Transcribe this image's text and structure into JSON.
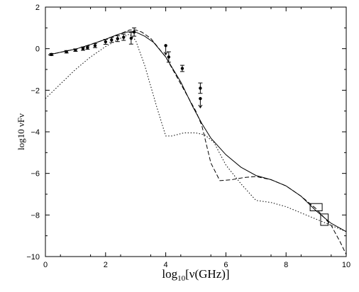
{
  "chart_data": {
    "type": "line",
    "title": "",
    "xlabel": "log10[ν(GHz)]",
    "xlabel_parts": {
      "prefix": "log",
      "subscript": "10",
      "suffix": "[ν(GHz)]"
    },
    "ylabel": "log10 νFν",
    "xlim": [
      0,
      10
    ],
    "ylim": [
      -10,
      2
    ],
    "xticks": [
      0,
      2,
      4,
      6,
      8,
      10
    ],
    "yticks": [
      -10,
      -8,
      -6,
      -4,
      -2,
      0,
      2
    ],
    "grid": false,
    "legend": "none",
    "series": [
      {
        "style": "solid",
        "x": [
          0.1,
          0.5,
          1.0,
          1.5,
          2.0,
          2.4,
          2.7,
          2.9,
          3.0,
          3.3,
          3.6,
          4.0,
          4.5,
          4.9,
          5.2,
          5.5,
          6.0,
          6.5,
          7.0,
          7.5,
          8.0,
          8.5,
          9.0,
          9.5,
          10.0
        ],
        "y": [
          -0.3,
          -0.17,
          -0.02,
          0.2,
          0.45,
          0.68,
          0.8,
          0.82,
          0.8,
          0.6,
          0.3,
          -0.4,
          -1.6,
          -2.8,
          -3.6,
          -4.3,
          -5.1,
          -5.7,
          -6.1,
          -6.3,
          -6.6,
          -7.1,
          -7.8,
          -8.4,
          -8.8
        ]
      },
      {
        "style": "dashed",
        "x": [
          0.1,
          0.5,
          1.0,
          1.5,
          2.0,
          2.5,
          2.8,
          3.0,
          3.2,
          3.5,
          4.0,
          4.5,
          5.0,
          5.2,
          5.5,
          5.8,
          6.2,
          6.6,
          7.0,
          7.5,
          8.0,
          8.5,
          9.0,
          9.5,
          9.8,
          10.0
        ],
        "y": [
          -0.3,
          -0.17,
          -0.02,
          0.2,
          0.45,
          0.72,
          0.9,
          0.9,
          0.8,
          0.5,
          -0.4,
          -1.7,
          -3.0,
          -3.7,
          -5.5,
          -6.35,
          -6.3,
          -6.2,
          -6.15,
          -6.3,
          -6.6,
          -7.1,
          -7.7,
          -8.5,
          -9.3,
          -9.9
        ]
      },
      {
        "style": "dotted",
        "x": [
          0.0,
          0.5,
          1.0,
          1.5,
          2.0,
          2.5,
          2.8,
          3.0,
          3.3,
          3.7,
          4.0,
          4.2,
          4.6,
          5.0,
          5.3,
          5.6,
          6.0,
          6.5,
          7.0,
          7.5,
          8.0,
          8.5,
          9.0,
          9.5,
          10.0
        ],
        "y": [
          -2.4,
          -1.7,
          -1.0,
          -0.4,
          0.1,
          0.5,
          0.7,
          0.4,
          -0.8,
          -2.8,
          -4.2,
          -4.2,
          -4.05,
          -4.05,
          -4.15,
          -4.5,
          -5.6,
          -6.5,
          -7.3,
          -7.4,
          -7.6,
          -7.9,
          -8.2,
          -8.5,
          -8.8
        ]
      }
    ],
    "measurements": [
      {
        "x": 0.2,
        "y": -0.28,
        "err": 0.05
      },
      {
        "x": 0.7,
        "y": -0.15,
        "err": 0.06
      },
      {
        "x": 1.0,
        "y": -0.07,
        "err": 0.06
      },
      {
        "x": 1.25,
        "y": 0.0,
        "err": 0.08
      },
      {
        "x": 1.4,
        "y": 0.05,
        "err": 0.08
      },
      {
        "x": 1.65,
        "y": 0.15,
        "err": 0.1
      },
      {
        "x": 2.0,
        "y": 0.33,
        "err": 0.12
      },
      {
        "x": 2.2,
        "y": 0.42,
        "err": 0.12
      },
      {
        "x": 2.4,
        "y": 0.48,
        "err": 0.14
      },
      {
        "x": 2.6,
        "y": 0.55,
        "err": 0.15
      },
      {
        "x": 2.85,
        "y": 0.5,
        "err": 0.28
      },
      {
        "x": 2.95,
        "y": 0.8,
        "err": 0.2
      },
      {
        "x": 4.1,
        "y": -0.4,
        "err": 0.25
      },
      {
        "x": 4.55,
        "y": -0.95,
        "err": 0.15
      },
      {
        "x": 5.15,
        "y": -1.9,
        "err": 0.25
      }
    ],
    "upper_limits": [
      {
        "x": 4.0,
        "y": 0.15
      },
      {
        "x": 5.15,
        "y": -2.4
      }
    ],
    "boxes": [
      {
        "x": [
          8.8,
          9.2
        ],
        "y": [
          -7.8,
          -7.45
        ]
      },
      {
        "x": [
          9.15,
          9.4
        ],
        "y": [
          -8.5,
          -7.95
        ]
      }
    ]
  }
}
